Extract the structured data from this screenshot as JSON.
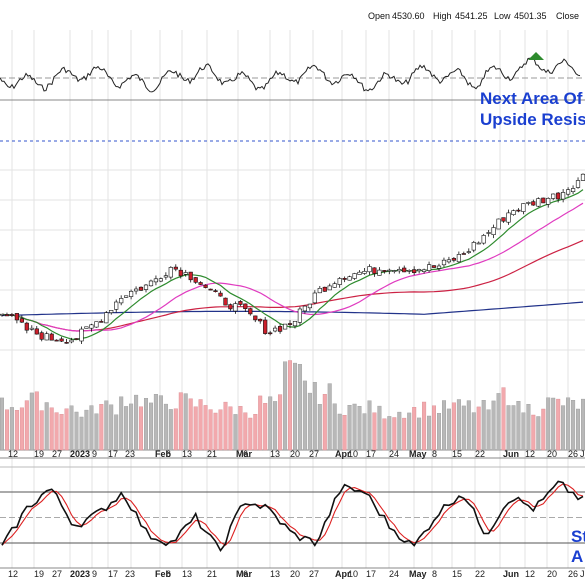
{
  "header": {
    "open_label": "Open",
    "open": "4530.60",
    "high_label": "High",
    "high": "4541.25",
    "low_label": "Low",
    "low": "4501.35",
    "close_label": "Close"
  },
  "annotations": {
    "resistance_line1": "Next Area Of",
    "resistance_line2": "Upside Resis",
    "stoch_line1": "St",
    "stoch_line2": "A"
  },
  "colors": {
    "background": "#ffffff",
    "up_candle": "#ffffff",
    "down_candle": "#cc1f2b",
    "candle_outline": "#111111",
    "ma_short": "#2e8b2e",
    "ma_mid": "#e03cc0",
    "ma_long": "#cc2244",
    "ma_200": "#22338a",
    "volume_up": "#b8b8b8",
    "volume_down": "#f2a9ad",
    "stoch_k": "#111111",
    "stoch_d": "#dd2222",
    "resistance": "#3355cc",
    "annotation": "#1a3fd0"
  },
  "chart_data": {
    "type": "candlestick",
    "x_tick_labels": [
      "12",
      "19",
      "27",
      "2023",
      "9",
      "17",
      "23",
      "Feb",
      "6",
      "13",
      "21",
      "Mar",
      "6",
      "13",
      "20",
      "27",
      "Apr",
      "10",
      "17",
      "24",
      "May",
      "8",
      "15",
      "22",
      "Jun",
      "12",
      "20",
      "26",
      "J"
    ],
    "x_tick_bold": [
      "2023",
      "Feb",
      "Mar",
      "Apr",
      "May",
      "Jun"
    ],
    "weekly_close": [
      3950,
      3870,
      3830,
      3830,
      3910,
      4020,
      4060,
      4140,
      4090,
      4000,
      3950,
      3860,
      3900,
      4030,
      4100,
      4120,
      4140,
      4130,
      4140,
      4190,
      4280,
      4380,
      4420,
      4450,
      4530
    ],
    "weekly_volume": [
      24,
      26,
      22,
      20,
      23,
      27,
      25,
      26,
      24,
      22,
      21,
      25,
      41,
      30,
      23,
      22,
      20,
      21,
      22,
      23,
      22,
      29,
      22,
      25,
      24
    ],
    "stochastic_k": [
      15,
      60,
      85,
      40,
      55,
      80,
      30,
      20,
      50,
      10,
      70,
      60,
      30,
      20,
      85,
      80,
      40,
      15,
      55,
      80,
      30,
      75,
      60,
      90,
      70
    ],
    "reference_lines": {
      "stoch_upper": 80,
      "stoch_lower": 20
    }
  }
}
